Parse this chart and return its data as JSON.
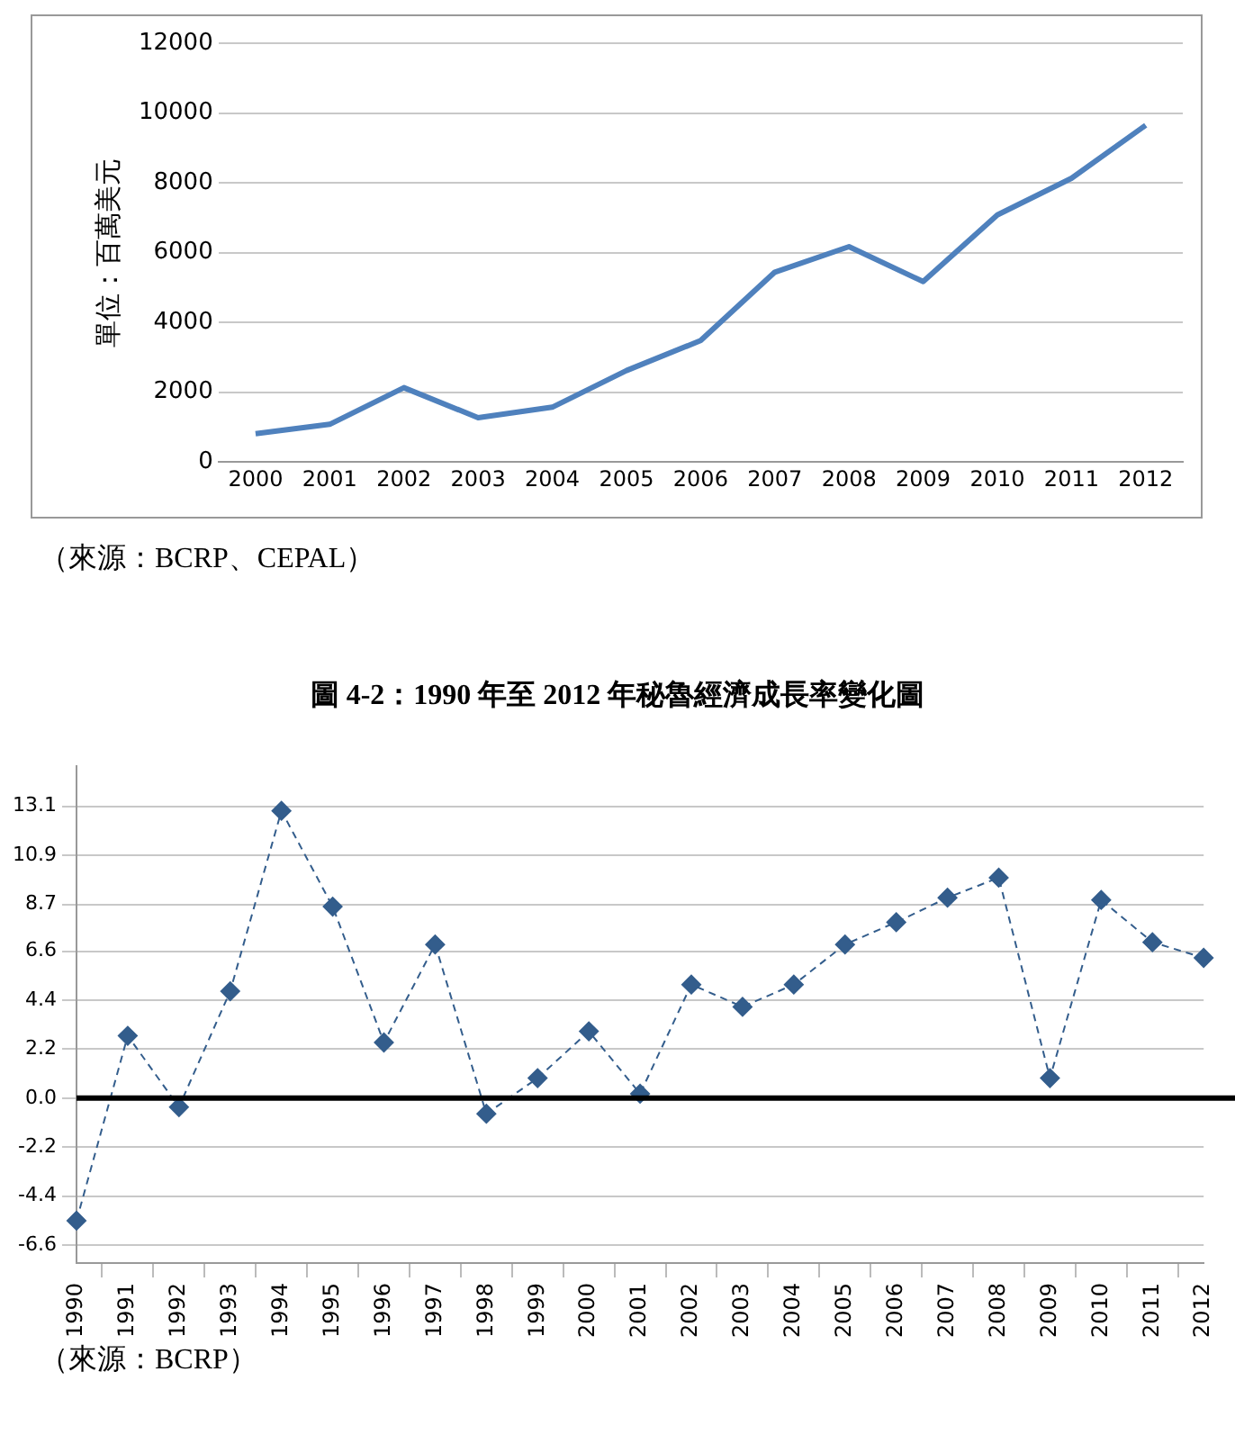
{
  "chart_data": [
    {
      "type": "line",
      "ylabel": "單位：百萬美元",
      "categories": [
        "2000",
        "2001",
        "2002",
        "2003",
        "2004",
        "2005",
        "2006",
        "2007",
        "2008",
        "2009",
        "2010",
        "2011",
        "2012"
      ],
      "series": [
        {
          "color": "#4f81bd",
          "values": [
            810,
            1080,
            2130,
            1270,
            1570,
            2620,
            3480,
            5440,
            6170,
            5170,
            7080,
            8130,
            9650
          ]
        }
      ],
      "ylim": [
        0,
        12000
      ],
      "yticks": [
        0,
        2000,
        4000,
        6000,
        8000,
        10000,
        12000
      ],
      "grid": "y",
      "annotations": [
        "（來源：BCRP、CEPAL）"
      ]
    },
    {
      "type": "line",
      "title": "圖 4-2：1990 年至 2012 年秘魯經濟成長率變化圖",
      "categories": [
        "1990",
        "1991",
        "1992",
        "1993",
        "1994",
        "1995",
        "1996",
        "1997",
        "1998",
        "1999",
        "2000",
        "2001",
        "2002",
        "2003",
        "2004",
        "2005",
        "2006",
        "2007",
        "2008",
        "2009",
        "2010",
        "2011",
        "2012"
      ],
      "series": [
        {
          "color": "#335d8c",
          "values": [
            -5.5,
            2.8,
            -0.4,
            4.8,
            12.9,
            8.6,
            2.5,
            6.9,
            -0.7,
            0.9,
            3.0,
            0.2,
            5.1,
            4.1,
            5.1,
            6.9,
            7.9,
            9.0,
            9.9,
            0.9,
            8.9,
            7.0,
            6.3
          ]
        }
      ],
      "ylim": [
        -7.4,
        14.9
      ],
      "yticks": [
        -6.6,
        -4.4,
        -2.2,
        {
          "value": 0,
          "label": "0.0"
        },
        2.2,
        4.4,
        6.6,
        8.7,
        10.9,
        13.1
      ],
      "grid": "y",
      "marker": "diamond",
      "line_style": "dashed",
      "ref_lines": [
        {
          "axis": "y",
          "value": 0,
          "color": "#000000"
        }
      ],
      "annotations": [
        "（來源：BCRP）"
      ]
    }
  ]
}
